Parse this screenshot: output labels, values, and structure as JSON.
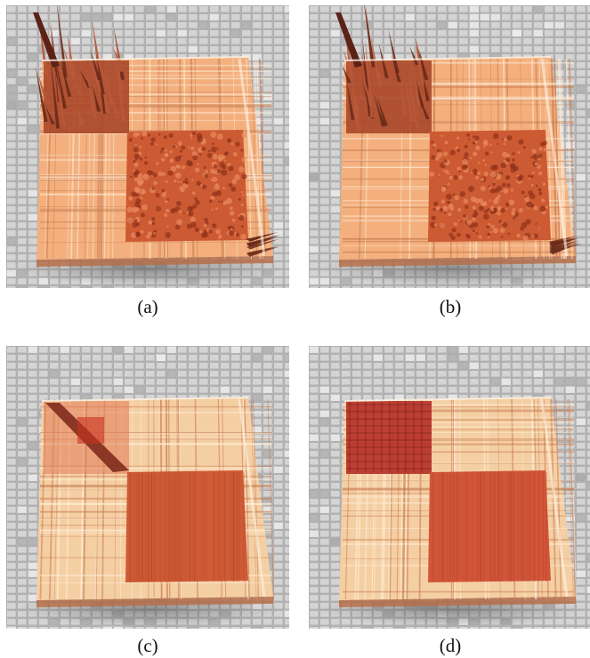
{
  "panels": [
    {
      "id": "a",
      "caption": "(a)",
      "variant": "spiky",
      "colors": {
        "outer": "#f3b07e",
        "inner": "#cc5a33",
        "top": "#a8482a"
      }
    },
    {
      "id": "b",
      "caption": "(b)",
      "variant": "spiky",
      "colors": {
        "outer": "#f3b07e",
        "inner": "#cc5a33",
        "top": "#a8482a"
      }
    },
    {
      "id": "c",
      "caption": "(c)",
      "variant": "smooth-diag",
      "colors": {
        "outer": "#f5cfa4",
        "inner": "#cf5b36",
        "top": "#e07a55"
      }
    },
    {
      "id": "d",
      "caption": "(d)",
      "variant": "smooth-dark",
      "colors": {
        "outer": "#f5cfa4",
        "inner": "#d2553a",
        "top": "#b53027"
      }
    }
  ]
}
